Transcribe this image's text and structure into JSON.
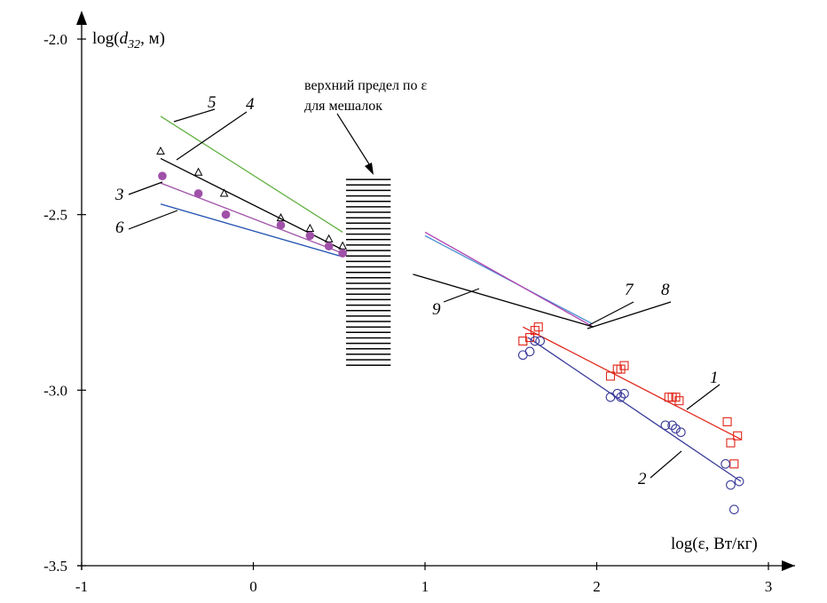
{
  "chart_data": {
    "type": "scatter",
    "title": "",
    "xlabel": "log(ε, Вт/кг)",
    "ylabel": {
      "prefix": "log(",
      "var": "d",
      "sub": "32",
      "suffix": ", м)"
    },
    "xlim": [
      -1,
      3
    ],
    "ylim": [
      -3.5,
      -2.0
    ],
    "x_ticks": [
      -1,
      0,
      1,
      2,
      3
    ],
    "x_tick_labels": [
      "-1",
      "0",
      "1",
      "2",
      "3"
    ],
    "y_ticks": [
      -2.0,
      -2.5,
      -3.0,
      -3.5
    ],
    "y_tick_labels": [
      "-2.0",
      "-2.5",
      "-3.0",
      "-3.5"
    ],
    "grid": false,
    "colors": {
      "red": "#e0261a",
      "navy": "#3a3a9a",
      "black": "#000000",
      "purple": "#b040b0",
      "dot": "#a050a8",
      "blue": "#2050b0",
      "green": "#60b040",
      "lightblue": "#4890d0"
    },
    "series": [
      {
        "name": "1",
        "marker": "square",
        "color": "#e0261a",
        "points": [
          [
            1.57,
            -2.86
          ],
          [
            1.61,
            -2.85
          ],
          [
            1.64,
            -2.83
          ],
          [
            1.66,
            -2.82
          ],
          [
            2.08,
            -2.96
          ],
          [
            2.12,
            -2.94
          ],
          [
            2.14,
            -2.94
          ],
          [
            2.16,
            -2.93
          ],
          [
            2.42,
            -3.02
          ],
          [
            2.44,
            -3.02
          ],
          [
            2.46,
            -3.02
          ],
          [
            2.48,
            -3.03
          ],
          [
            2.76,
            -3.09
          ],
          [
            2.78,
            -3.15
          ],
          [
            2.8,
            -3.21
          ],
          [
            2.82,
            -3.13
          ]
        ],
        "fit": [
          [
            1.57,
            -2.82
          ],
          [
            2.84,
            -3.14
          ]
        ]
      },
      {
        "name": "2",
        "marker": "circle",
        "color": "#3a3a9a",
        "points": [
          [
            1.57,
            -2.9
          ],
          [
            1.61,
            -2.89
          ],
          [
            1.64,
            -2.86
          ],
          [
            1.67,
            -2.86
          ],
          [
            2.08,
            -3.02
          ],
          [
            2.12,
            -3.01
          ],
          [
            2.14,
            -3.02
          ],
          [
            2.16,
            -3.01
          ],
          [
            2.4,
            -3.1
          ],
          [
            2.44,
            -3.1
          ],
          [
            2.46,
            -3.11
          ],
          [
            2.49,
            -3.12
          ],
          [
            2.75,
            -3.21
          ],
          [
            2.78,
            -3.27
          ],
          [
            2.8,
            -3.34
          ],
          [
            2.83,
            -3.26
          ]
        ],
        "fit": [
          [
            1.6,
            -2.85
          ],
          [
            2.84,
            -3.26
          ]
        ]
      },
      {
        "name": "4",
        "marker": "triangle",
        "color": "#000000",
        "points": [
          [
            -0.54,
            -2.32
          ],
          [
            -0.32,
            -2.38
          ],
          [
            -0.17,
            -2.44
          ],
          [
            0.16,
            -2.51
          ],
          [
            0.33,
            -2.54
          ],
          [
            0.44,
            -2.57
          ],
          [
            0.52,
            -2.59
          ]
        ],
        "fit": [
          [
            -0.54,
            -2.34
          ],
          [
            0.52,
            -2.6
          ]
        ]
      },
      {
        "name": "3",
        "marker": "dot",
        "color": "#a050a8",
        "points": [
          [
            -0.53,
            -2.39
          ],
          [
            -0.32,
            -2.44
          ],
          [
            -0.16,
            -2.5
          ],
          [
            0.16,
            -2.53
          ],
          [
            0.33,
            -2.56
          ],
          [
            0.44,
            -2.59
          ],
          [
            0.52,
            -2.61
          ]
        ],
        "fit": [
          [
            -0.54,
            -2.41
          ],
          [
            0.52,
            -2.61
          ]
        ]
      },
      {
        "name": "6",
        "marker": "none",
        "color": "#2050b0",
        "fit": [
          [
            -0.54,
            -2.47
          ],
          [
            0.52,
            -2.62
          ]
        ]
      },
      {
        "name": "5",
        "marker": "none",
        "color": "#60b040",
        "fit": [
          [
            -0.54,
            -2.22
          ],
          [
            0.52,
            -2.55
          ]
        ]
      },
      {
        "name": "7",
        "marker": "none",
        "color": "#4890d0",
        "fit": [
          [
            1.0,
            -2.56
          ],
          [
            1.97,
            -2.81
          ]
        ]
      },
      {
        "name": "8",
        "marker": "none",
        "color": "#b040b0",
        "fit": [
          [
            1.0,
            -2.55
          ],
          [
            1.98,
            -2.82
          ]
        ]
      },
      {
        "name": "9",
        "marker": "none",
        "color": "#000000",
        "fit": [
          [
            0.93,
            -2.67
          ],
          [
            1.98,
            -2.82
          ]
        ]
      }
    ],
    "hatch": {
      "x": [
        0.54,
        0.8
      ],
      "y": [
        -2.4,
        -2.94
      ]
    },
    "annotation": {
      "lines": [
        "верхний предел по ε",
        "для мешалок"
      ]
    },
    "curve_labels": [
      "1",
      "2",
      "3",
      "4",
      "5",
      "6",
      "7",
      "8",
      "9"
    ]
  }
}
